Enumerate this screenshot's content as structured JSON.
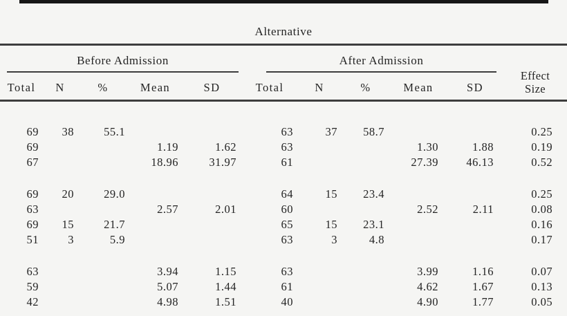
{
  "table": {
    "title": "Alternative",
    "col_groups": [
      {
        "label": "Before Admission"
      },
      {
        "label": "After Admission"
      }
    ],
    "effect_header": {
      "line1": "Effect",
      "line2": "Size"
    },
    "columns": [
      "Total",
      "N",
      "%",
      "Mean",
      "SD",
      "Total",
      "N",
      "%",
      "Mean",
      "SD"
    ],
    "groups": [
      {
        "rows": [
          [
            "69",
            "38",
            "55.1",
            "",
            "",
            "63",
            "37",
            "58.7",
            "",
            "",
            "0.25"
          ],
          [
            "69",
            "",
            "",
            "1.19",
            "1.62",
            "63",
            "",
            "",
            "1.30",
            "1.88",
            "0.19"
          ],
          [
            "67",
            "",
            "",
            "18.96",
            "31.97",
            "61",
            "",
            "",
            "27.39",
            "46.13",
            "0.52"
          ]
        ]
      },
      {
        "rows": [
          [
            "69",
            "20",
            "29.0",
            "",
            "",
            "64",
            "15",
            "23.4",
            "",
            "",
            "0.25"
          ],
          [
            "63",
            "",
            "",
            "2.57",
            "2.01",
            "60",
            "",
            "",
            "2.52",
            "2.11",
            "0.08"
          ],
          [
            "69",
            "15",
            "21.7",
            "",
            "",
            "65",
            "15",
            "23.1",
            "",
            "",
            "0.16"
          ],
          [
            "51",
            "3",
            "5.9",
            "",
            "",
            "63",
            "3",
            "4.8",
            "",
            "",
            "0.17"
          ]
        ]
      },
      {
        "rows": [
          [
            "63",
            "",
            "",
            "3.94",
            "1.15",
            "63",
            "",
            "",
            "3.99",
            "1.16",
            "0.07"
          ],
          [
            "59",
            "",
            "",
            "5.07",
            "1.44",
            "61",
            "",
            "",
            "4.62",
            "1.67",
            "0.13"
          ],
          [
            "42",
            "",
            "",
            "4.98",
            "1.51",
            "40",
            "",
            "",
            "4.90",
            "1.77",
            "0.05"
          ]
        ]
      }
    ]
  },
  "colors": {
    "background": "#f5f5f3",
    "text": "#242424",
    "rule": "#3d3d3d",
    "top_bar": "#161616"
  }
}
